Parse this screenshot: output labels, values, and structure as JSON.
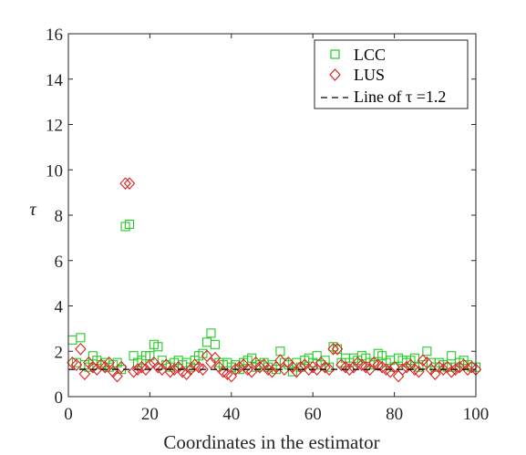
{
  "chart_data": {
    "type": "scatter",
    "xlabel": "Coordinates in the estimator",
    "ylabel": "τ",
    "xlim": [
      0,
      100
    ],
    "ylim": [
      0,
      16
    ],
    "xticks": [
      0,
      20,
      40,
      60,
      80,
      100
    ],
    "yticks": [
      0,
      2,
      4,
      6,
      8,
      10,
      12,
      14,
      16
    ],
    "legend_position": "top-right",
    "series": [
      {
        "name": "LCC",
        "marker": "square",
        "color": "#22cc22",
        "x": [
          1,
          2,
          3,
          4,
          5,
          6,
          7,
          8,
          9,
          10,
          11,
          12,
          13,
          14,
          15,
          16,
          17,
          18,
          19,
          20,
          21,
          22,
          23,
          24,
          25,
          26,
          27,
          28,
          29,
          30,
          31,
          32,
          33,
          34,
          35,
          36,
          37,
          38,
          39,
          40,
          41,
          42,
          43,
          44,
          45,
          46,
          47,
          48,
          49,
          50,
          51,
          52,
          53,
          54,
          55,
          56,
          57,
          58,
          59,
          60,
          61,
          62,
          63,
          64,
          65,
          66,
          67,
          68,
          69,
          70,
          71,
          72,
          73,
          74,
          75,
          76,
          77,
          78,
          79,
          80,
          81,
          82,
          83,
          84,
          85,
          86,
          87,
          88,
          89,
          90,
          91,
          92,
          93,
          94,
          95,
          96,
          97,
          98,
          99,
          100
        ],
        "y": [
          2.5,
          1.5,
          2.6,
          1.4,
          1.3,
          1.8,
          1.6,
          1.4,
          1.5,
          1.3,
          1.4,
          1.5,
          1.2,
          7.5,
          7.6,
          1.8,
          1.5,
          1.6,
          1.8,
          1.8,
          2.3,
          2.2,
          1.6,
          1.4,
          1.3,
          1.5,
          1.6,
          1.4,
          1.5,
          1.3,
          1.6,
          1.8,
          1.9,
          2.4,
          2.8,
          2.3,
          1.5,
          1.4,
          1.5,
          1.3,
          1.4,
          1.2,
          1.5,
          1.6,
          1.7,
          1.3,
          1.4,
          1.5,
          1.3,
          1.4,
          1.2,
          2.0,
          1.5,
          1.4,
          1.1,
          1.5,
          1.3,
          1.6,
          1.7,
          1.5,
          1.8,
          1.4,
          1.6,
          1.3,
          2.2,
          2.1,
          1.5,
          1.7,
          1.5,
          1.7,
          1.6,
          1.8,
          1.7,
          1.5,
          1.4,
          1.9,
          1.8,
          1.5,
          1.6,
          1.3,
          1.7,
          1.6,
          1.5,
          1.6,
          1.7,
          1.3,
          1.4,
          2.0,
          1.5,
          1.3,
          1.5,
          1.4,
          1.3,
          1.8,
          1.3,
          1.5,
          1.6,
          1.4,
          1.3,
          1.3
        ]
      },
      {
        "name": "LUS",
        "marker": "diamond",
        "color": "#dd2222",
        "x": [
          1,
          2,
          3,
          4,
          5,
          6,
          7,
          8,
          9,
          10,
          11,
          12,
          13,
          14,
          15,
          16,
          17,
          18,
          19,
          20,
          21,
          22,
          23,
          24,
          25,
          26,
          27,
          28,
          29,
          30,
          31,
          32,
          33,
          34,
          35,
          36,
          37,
          38,
          39,
          40,
          41,
          42,
          43,
          44,
          45,
          46,
          47,
          48,
          49,
          50,
          51,
          52,
          53,
          54,
          55,
          56,
          57,
          58,
          59,
          60,
          61,
          62,
          63,
          64,
          65,
          66,
          67,
          68,
          69,
          70,
          71,
          72,
          73,
          74,
          75,
          76,
          77,
          78,
          79,
          80,
          81,
          82,
          83,
          84,
          85,
          86,
          87,
          88,
          89,
          90,
          91,
          92,
          93,
          94,
          95,
          96,
          97,
          98,
          99,
          100
        ],
        "y": [
          1.5,
          1.4,
          2.1,
          1.0,
          1.5,
          1.3,
          1.2,
          1.4,
          1.3,
          1.5,
          1.1,
          0.9,
          1.3,
          9.4,
          9.4,
          1.1,
          1.2,
          1.3,
          1.2,
          1.4,
          1.5,
          1.3,
          1.2,
          1.4,
          1.1,
          1.2,
          1.3,
          1.1,
          1.0,
          1.2,
          1.4,
          1.3,
          1.2,
          1.8,
          1.5,
          1.7,
          1.3,
          1.1,
          1.0,
          0.9,
          1.2,
          1.3,
          1.4,
          1.2,
          1.1,
          1.5,
          1.3,
          1.4,
          1.2,
          1.1,
          1.3,
          1.6,
          1.2,
          1.5,
          1.3,
          1.1,
          1.3,
          1.4,
          1.2,
          1.3,
          1.2,
          1.5,
          1.3,
          1.2,
          2.1,
          2.1,
          1.4,
          1.3,
          1.2,
          1.3,
          1.5,
          1.4,
          1.3,
          1.2,
          1.5,
          1.4,
          1.3,
          1.2,
          1.1,
          1.3,
          0.9,
          1.2,
          1.3,
          1.4,
          1.2,
          1.1,
          1.6,
          1.5,
          1.2,
          1.0,
          1.3,
          1.2,
          1.3,
          1.1,
          1.2,
          1.3,
          1.4,
          1.2,
          1.3,
          1.2
        ]
      },
      {
        "name": "Line of τ =1.2",
        "marker": "dashed-line",
        "color": "#000000",
        "y_constant": 1.2
      }
    ]
  }
}
